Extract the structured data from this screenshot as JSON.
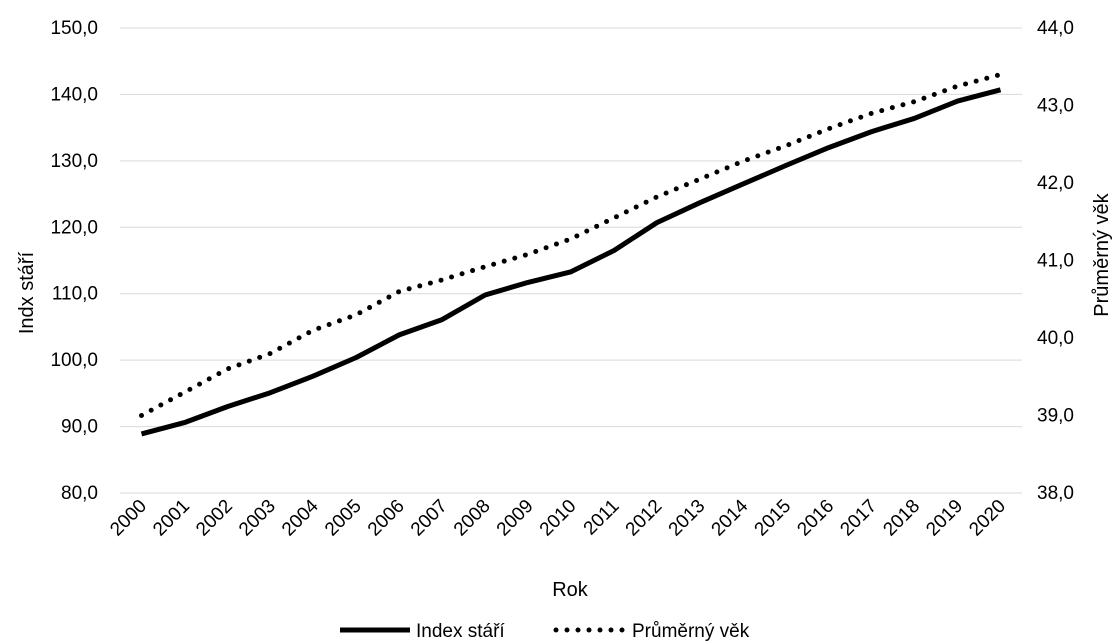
{
  "chart_data": {
    "type": "line",
    "x": [
      "2000",
      "2001",
      "2002",
      "2003",
      "2004",
      "2005",
      "2006",
      "2007",
      "2008",
      "2009",
      "2010",
      "2011",
      "2012",
      "2013",
      "2014",
      "2015",
      "2016",
      "2017",
      "2018",
      "2019",
      "2020"
    ],
    "xlabel": "Rok",
    "ylabel_left": "Indx stáří",
    "ylabel_right": "Průměrný věk",
    "ylim_left": [
      80,
      150
    ],
    "ylim_right": [
      38,
      44
    ],
    "yticks_left": [
      "80,0",
      "90,0",
      "100,0",
      "110,0",
      "120,0",
      "130,0",
      "140,0",
      "150,0"
    ],
    "yticks_right": [
      "38,0",
      "39,0",
      "40,0",
      "41,0",
      "42,0",
      "43,0",
      "44,0"
    ],
    "grid": true,
    "legend_position": "bottom",
    "series": [
      {
        "name": "Index stáří",
        "axis": "left",
        "style": "solid",
        "color": "#000000",
        "values": [
          88.9,
          90.6,
          93.0,
          95.1,
          97.6,
          100.4,
          103.8,
          106.1,
          109.8,
          111.7,
          113.3,
          116.5,
          120.7,
          123.7,
          126.5,
          129.3,
          132.0,
          134.4,
          136.4,
          139.0,
          140.7
        ]
      },
      {
        "name": "Průměrný věk",
        "axis": "right",
        "style": "dotted",
        "color": "#000000",
        "values": [
          39.0,
          39.3,
          39.6,
          39.8,
          40.1,
          40.3,
          40.6,
          40.75,
          40.92,
          41.08,
          41.28,
          41.55,
          41.82,
          42.05,
          42.28,
          42.48,
          42.7,
          42.9,
          43.05,
          43.25,
          43.4
        ]
      }
    ]
  }
}
